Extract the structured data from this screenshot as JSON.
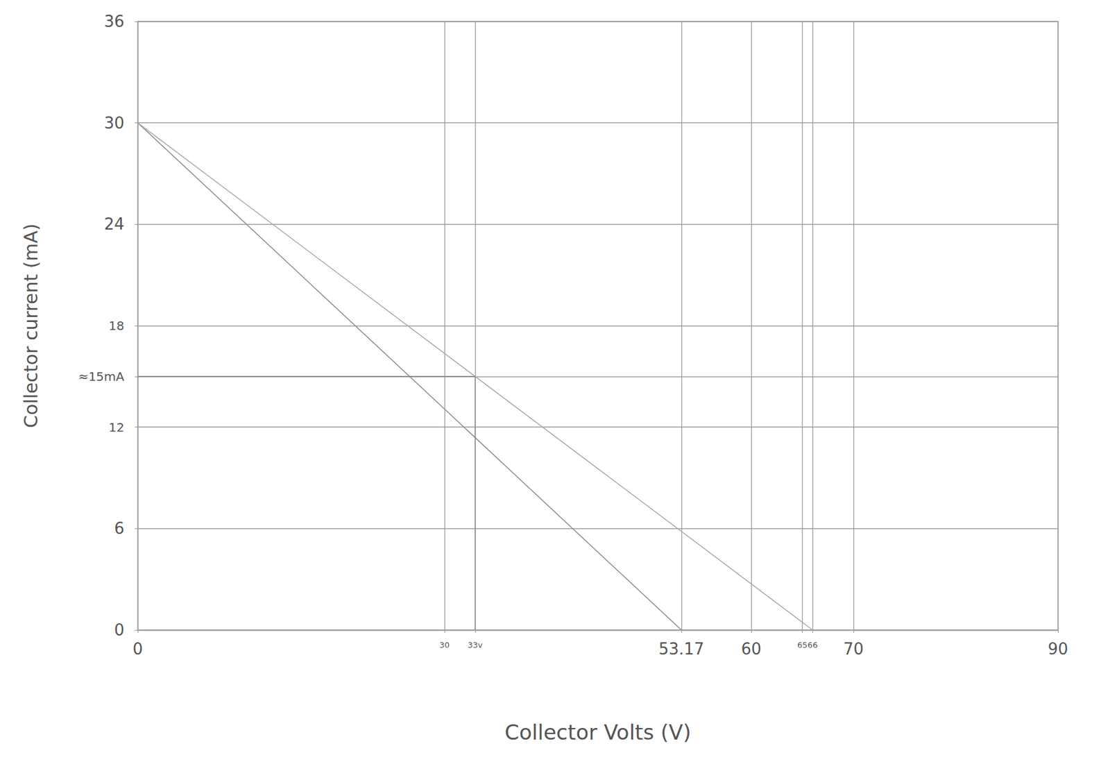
{
  "chart_data": {
    "type": "line",
    "xlabel": "Collector Volts (V)",
    "ylabel": "Collector current (mA)",
    "xlim": [
      0,
      90
    ],
    "xticks": [
      0,
      30,
      {
        "value": 33,
        "label": "33v"
      },
      53.17,
      60,
      65,
      66,
      70,
      90
    ],
    "ylim": [
      0,
      36
    ],
    "yticks": [
      0,
      6,
      12,
      {
        "value": 15,
        "label": "≈15mA"
      },
      18,
      24,
      30,
      36
    ],
    "grid": true,
    "series": [
      {
        "color": "#8a8a8a",
        "x": [
          0,
          53.17
        ],
        "values": [
          30,
          0
        ]
      },
      {
        "color": "#a8a8a8",
        "x": [
          0,
          66
        ],
        "values": [
          30,
          0
        ]
      },
      {
        "color": "#8a8a8a",
        "x": [
          33,
          33
        ],
        "values": [
          0,
          15
        ]
      },
      {
        "color": "#8a8a8a",
        "x": [
          0,
          33
        ],
        "values": [
          15,
          15
        ]
      }
    ]
  }
}
